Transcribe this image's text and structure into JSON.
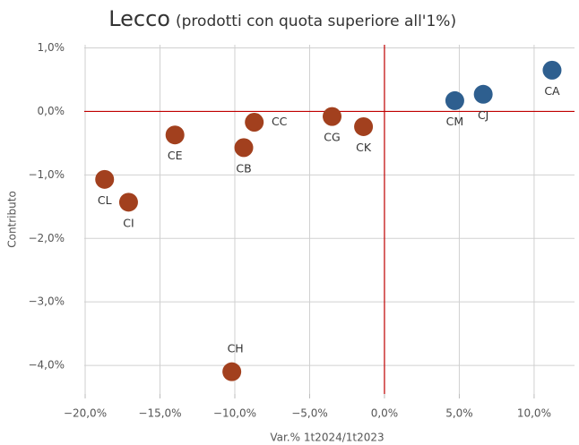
{
  "chart_data": {
    "type": "scatter",
    "title": "Lecco",
    "subtitle": "(prodotti con quota superiore all'1%)",
    "x_label": "Var.% 1t2024/1t2023",
    "y_label": "Contributo",
    "labels": [
      "CA",
      "CJ",
      "CM",
      "CK",
      "CG",
      "CC",
      "CB",
      "CE",
      "CL",
      "CI",
      "CH"
    ],
    "x": [
      11.2,
      6.6,
      4.7,
      -1.4,
      -3.5,
      -8.7,
      -9.4,
      -14.0,
      -18.7,
      -17.1,
      -10.2
    ],
    "values": [
      0.65,
      0.27,
      0.17,
      -0.24,
      -0.08,
      -0.17,
      -0.57,
      -0.37,
      -1.07,
      -1.43,
      -4.1
    ],
    "colors": [
      "#2e5f8f",
      "#2e5f8f",
      "#2e5f8f",
      "#a2401e",
      "#a2401e",
      "#a2401e",
      "#a2401e",
      "#a2401e",
      "#a2401e",
      "#a2401e",
      "#a2401e"
    ],
    "xlim": [
      -20.9,
      12.7
    ],
    "ylim": [
      -4.45,
      1.05
    ],
    "xticks": [
      {
        "value": -20,
        "label": "−20,0%"
      },
      {
        "value": -15,
        "label": "−15,0%"
      },
      {
        "value": -10,
        "label": "−10,0%"
      },
      {
        "value": -5,
        "label": "−5,0%"
      },
      {
        "value": 0,
        "label": "0,0%"
      },
      {
        "value": 5,
        "label": "5,0%"
      },
      {
        "value": 10,
        "label": "10,0%"
      }
    ],
    "yticks": [
      {
        "value": 1,
        "label": "1,0%"
      },
      {
        "value": 0,
        "label": "0,0%"
      },
      {
        "value": -1,
        "label": "−1,0%"
      },
      {
        "value": -2,
        "label": "−2,0%"
      },
      {
        "value": -3,
        "label": "−3,0%"
      },
      {
        "value": -4,
        "label": "−4,0%"
      }
    ],
    "grid": true,
    "zero_line_color": "#c00000"
  }
}
